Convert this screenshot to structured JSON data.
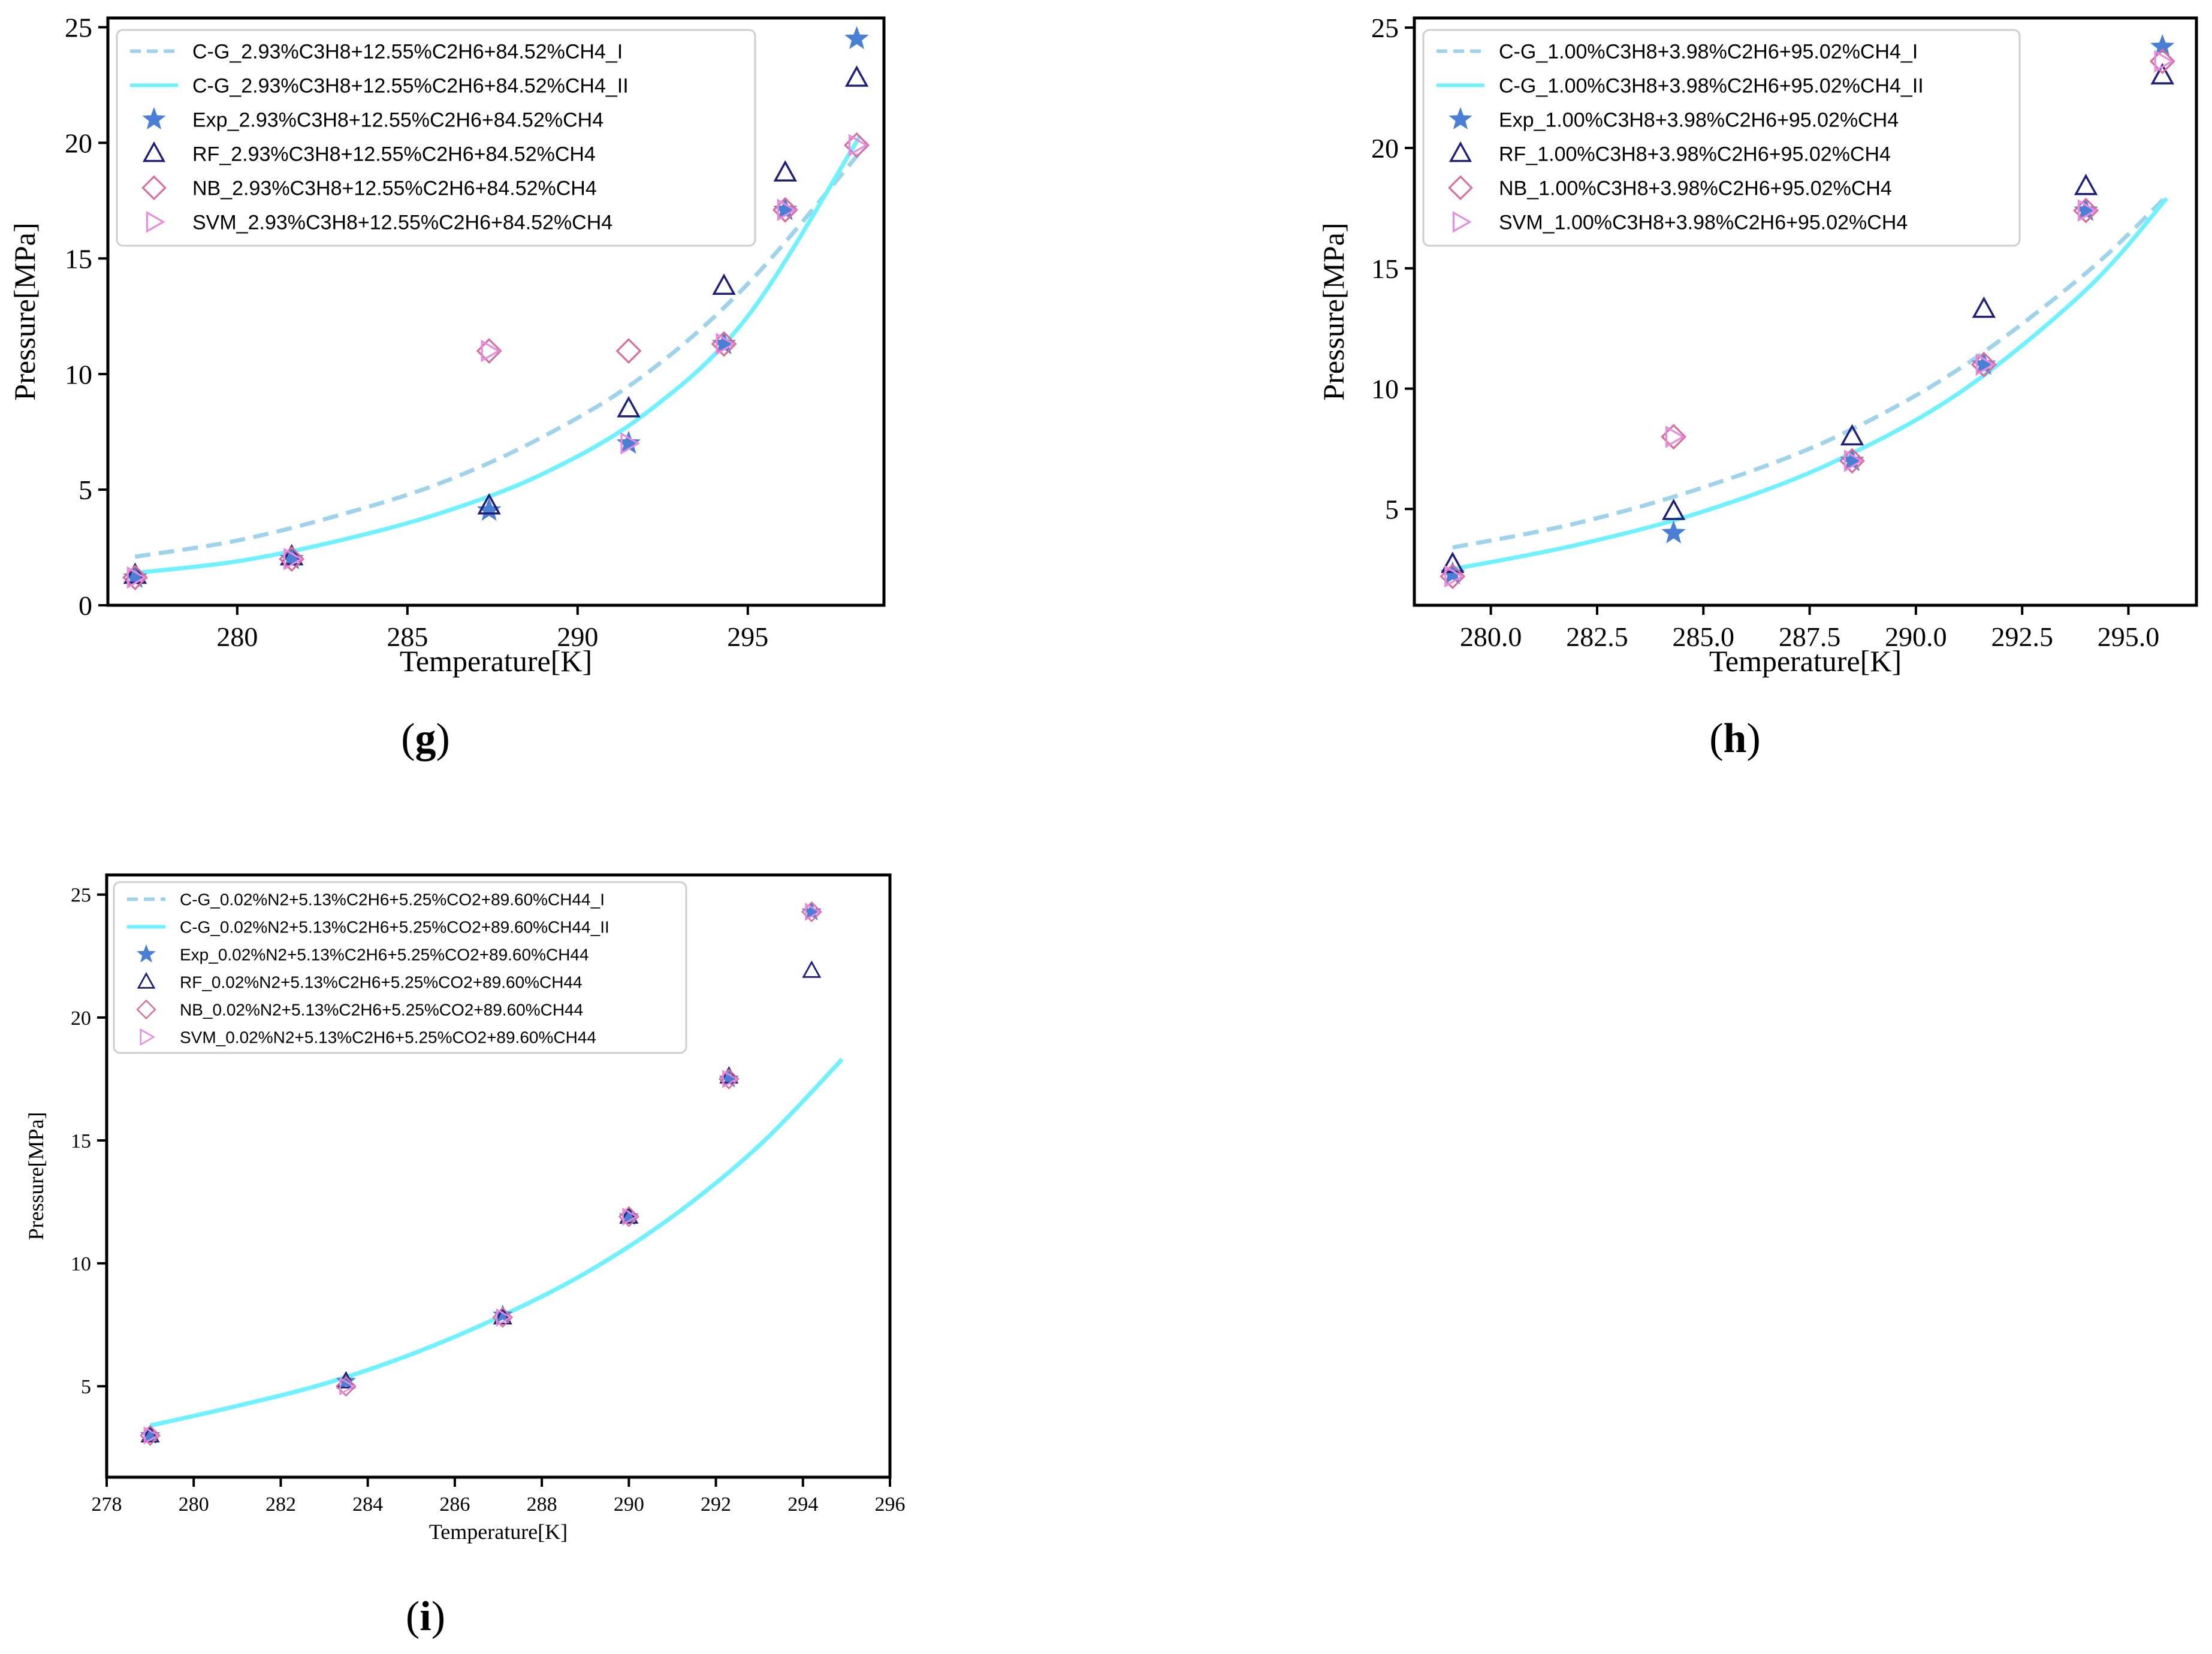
{
  "colors": {
    "cg_I": "#9fd3ec",
    "cg_II": "#6ff2ff",
    "exp": "#4a7fd6",
    "rf": "#1f1f7a",
    "nb": "#d86f9a",
    "svm": "#e58be0",
    "legend_border": "#cfcfcf"
  },
  "chart_data": [
    {
      "type": "scatter",
      "panel_label": "(g)",
      "panel_letter": "g",
      "xlabel": "Temperature[K]",
      "ylabel": "Pressure[MPa]",
      "xlim": [
        276.2,
        299.0
      ],
      "ylim": [
        0,
        25.4
      ],
      "xticks": [
        280,
        285,
        290,
        295
      ],
      "xtick_labels": [
        "280",
        "285",
        "290",
        "295"
      ],
      "yticks": [
        0,
        5,
        10,
        15,
        20,
        25
      ],
      "ytick_labels": [
        "0",
        "5",
        "10",
        "15",
        "20",
        "25"
      ],
      "legend": [
        "C-G_2.93%C3H8+12.55%C2H6+84.52%CH4_I",
        "C-G_2.93%C3H8+12.55%C2H6+84.52%CH4_II",
        "Exp_2.93%C3H8+12.55%C2H6+84.52%CH4",
        "RF_2.93%C3H8+12.55%C2H6+84.52%CH4",
        "NB_2.93%C3H8+12.55%C2H6+84.52%CH4",
        "SVM_2.93%C3H8+12.55%C2H6+84.52%CH4"
      ],
      "lines": [
        {
          "name": "C-G_I",
          "x": [
            277.0,
            280.0,
            283.0,
            286.0,
            289.0,
            292.0,
            295.0,
            298.3
          ],
          "y": [
            2.1,
            2.8,
            3.9,
            5.3,
            7.3,
            10.0,
            13.9,
            19.6
          ]
        },
        {
          "name": "C-G_II",
          "x": [
            277.0,
            280.0,
            283.0,
            286.0,
            289.0,
            292.0,
            295.0,
            298.3
          ],
          "y": [
            1.4,
            1.9,
            2.8,
            4.0,
            5.7,
            8.3,
            12.5,
            20.3
          ]
        }
      ],
      "series": [
        {
          "name": "Exp",
          "x": [
            277.0,
            281.6,
            287.4,
            291.5,
            294.3,
            296.1,
            298.2
          ],
          "y": [
            1.2,
            2.0,
            4.1,
            7.0,
            11.3,
            17.1,
            24.5
          ]
        },
        {
          "name": "RF",
          "x": [
            277.0,
            281.6,
            287.4,
            291.5,
            294.3,
            296.1,
            298.2
          ],
          "y": [
            1.3,
            2.1,
            4.3,
            8.5,
            13.8,
            18.7,
            22.8
          ]
        },
        {
          "name": "NB",
          "x": [
            277.0,
            281.6,
            287.4,
            291.5,
            294.3,
            296.1,
            298.2
          ],
          "y": [
            1.2,
            2.0,
            11.0,
            11.0,
            11.3,
            17.1,
            19.9
          ]
        },
        {
          "name": "SVM",
          "x": [
            277.0,
            281.6,
            287.4,
            291.5,
            294.3,
            296.1,
            298.2
          ],
          "y": [
            1.2,
            2.0,
            11.0,
            7.0,
            11.3,
            17.1,
            19.9
          ]
        }
      ]
    },
    {
      "type": "scatter",
      "panel_label": "(h)",
      "panel_letter": "h",
      "xlabel": "Temperature[K]",
      "ylabel": "Pressure[MPa]",
      "xlim": [
        278.2,
        296.6
      ],
      "ylim": [
        1.0,
        25.4
      ],
      "xticks": [
        280.0,
        282.5,
        285.0,
        287.5,
        290.0,
        292.5,
        295.0
      ],
      "xtick_labels": [
        "280.0",
        "282.5",
        "285.0",
        "287.5",
        "290.0",
        "292.5",
        "295.0"
      ],
      "yticks": [
        5,
        10,
        15,
        20,
        25
      ],
      "ytick_labels": [
        "5",
        "10",
        "15",
        "20",
        "25"
      ],
      "legend": [
        "C-G_1.00%C3H8+3.98%C2H6+95.02%CH4_I",
        "C-G_1.00%C3H8+3.98%C2H6+95.02%CH4_II",
        "Exp_1.00%C3H8+3.98%C2H6+95.02%CH4",
        "RF_1.00%C3H8+3.98%C2H6+95.02%CH4",
        "NB_1.00%C3H8+3.98%C2H6+95.02%CH4",
        "SVM_1.00%C3H8+3.98%C2H6+95.02%CH4"
      ],
      "lines": [
        {
          "name": "C-G_I",
          "x": [
            279.1,
            282.0,
            285.0,
            288.0,
            291.0,
            294.0,
            295.9
          ],
          "y": [
            3.4,
            4.4,
            5.9,
            7.9,
            10.8,
            14.8,
            18.0
          ]
        },
        {
          "name": "C-G_II",
          "x": [
            279.1,
            282.0,
            285.0,
            288.0,
            291.0,
            294.0,
            295.9
          ],
          "y": [
            2.5,
            3.5,
            4.9,
            6.9,
            9.8,
            14.1,
            17.9
          ]
        }
      ],
      "series": [
        {
          "name": "Exp",
          "x": [
            279.1,
            284.3,
            288.5,
            291.6,
            294.0,
            295.8
          ],
          "y": [
            2.3,
            4.0,
            7.0,
            11.0,
            17.4,
            24.2
          ]
        },
        {
          "name": "RF",
          "x": [
            279.1,
            284.3,
            288.5,
            291.6,
            294.0,
            295.8
          ],
          "y": [
            2.7,
            4.9,
            8.0,
            13.3,
            18.4,
            23.0
          ]
        },
        {
          "name": "NB",
          "x": [
            279.1,
            284.3,
            288.5,
            291.6,
            294.0,
            295.8
          ],
          "y": [
            2.2,
            8.0,
            7.0,
            11.0,
            17.4,
            23.6
          ]
        },
        {
          "name": "SVM",
          "x": [
            279.1,
            284.3,
            288.5,
            291.6,
            294.0,
            295.8
          ],
          "y": [
            2.2,
            8.0,
            7.0,
            11.0,
            17.4,
            23.6
          ]
        }
      ]
    },
    {
      "type": "scatter",
      "panel_label": "(i)",
      "panel_letter": "i",
      "xlabel": "Temperature[K]",
      "ylabel": "Pressure[MPa]",
      "xlim": [
        278,
        296
      ],
      "ylim": [
        1.3,
        25.8
      ],
      "xticks": [
        278,
        280,
        282,
        284,
        286,
        288,
        290,
        292,
        294,
        296
      ],
      "xtick_labels": [
        "278",
        "280",
        "282",
        "284",
        "286",
        "288",
        "290",
        "292",
        "294",
        "296"
      ],
      "yticks": [
        5,
        10,
        15,
        20,
        25
      ],
      "ytick_labels": [
        "5",
        "10",
        "15",
        "20",
        "25"
      ],
      "legend": [
        "C-G_0.02%N2+5.13%C2H6+5.25%CO2+89.60%CH44_I",
        "C-G_0.02%N2+5.13%C2H6+5.25%CO2+89.60%CH44_II",
        "Exp_0.02%N2+5.13%C2H6+5.25%CO2+89.60%CH44",
        "RF_0.02%N2+5.13%C2H6+5.25%CO2+89.60%CH44",
        "NB_0.02%N2+5.13%C2H6+5.25%CO2+89.60%CH44",
        "SVM_0.02%N2+5.13%C2H6+5.25%CO2+89.60%CH44"
      ],
      "lines": [
        {
          "name": "C-G_I",
          "x": [
            279.0,
            281.0,
            283.0,
            285.0,
            287.0,
            289.0,
            291.0,
            293.0,
            294.9
          ],
          "y": [
            3.4,
            4.2,
            5.1,
            6.3,
            7.8,
            9.6,
            11.9,
            14.8,
            18.3
          ]
        },
        {
          "name": "C-G_II",
          "x": [
            279.0,
            281.0,
            283.0,
            285.0,
            287.0,
            289.0,
            291.0,
            293.0,
            294.9
          ],
          "y": [
            3.4,
            4.2,
            5.1,
            6.3,
            7.8,
            9.6,
            11.9,
            14.8,
            18.3
          ]
        }
      ],
      "series": [
        {
          "name": "Exp",
          "x": [
            279.0,
            283.5,
            287.1,
            290.0,
            292.3,
            294.2
          ],
          "y": [
            3.0,
            5.2,
            7.9,
            11.9,
            17.5,
            24.3
          ]
        },
        {
          "name": "RF",
          "x": [
            279.0,
            283.5,
            287.1,
            290.0,
            292.3,
            294.2
          ],
          "y": [
            3.0,
            5.2,
            7.8,
            11.9,
            17.6,
            21.9
          ]
        },
        {
          "name": "NB",
          "x": [
            279.0,
            283.5,
            287.1,
            290.0,
            292.3,
            294.2
          ],
          "y": [
            3.0,
            5.0,
            7.8,
            11.9,
            17.5,
            24.3
          ]
        },
        {
          "name": "SVM",
          "x": [
            279.0,
            283.5,
            287.1,
            290.0,
            292.3,
            294.2
          ],
          "y": [
            3.0,
            5.0,
            7.8,
            11.9,
            17.5,
            24.3
          ]
        }
      ]
    }
  ]
}
